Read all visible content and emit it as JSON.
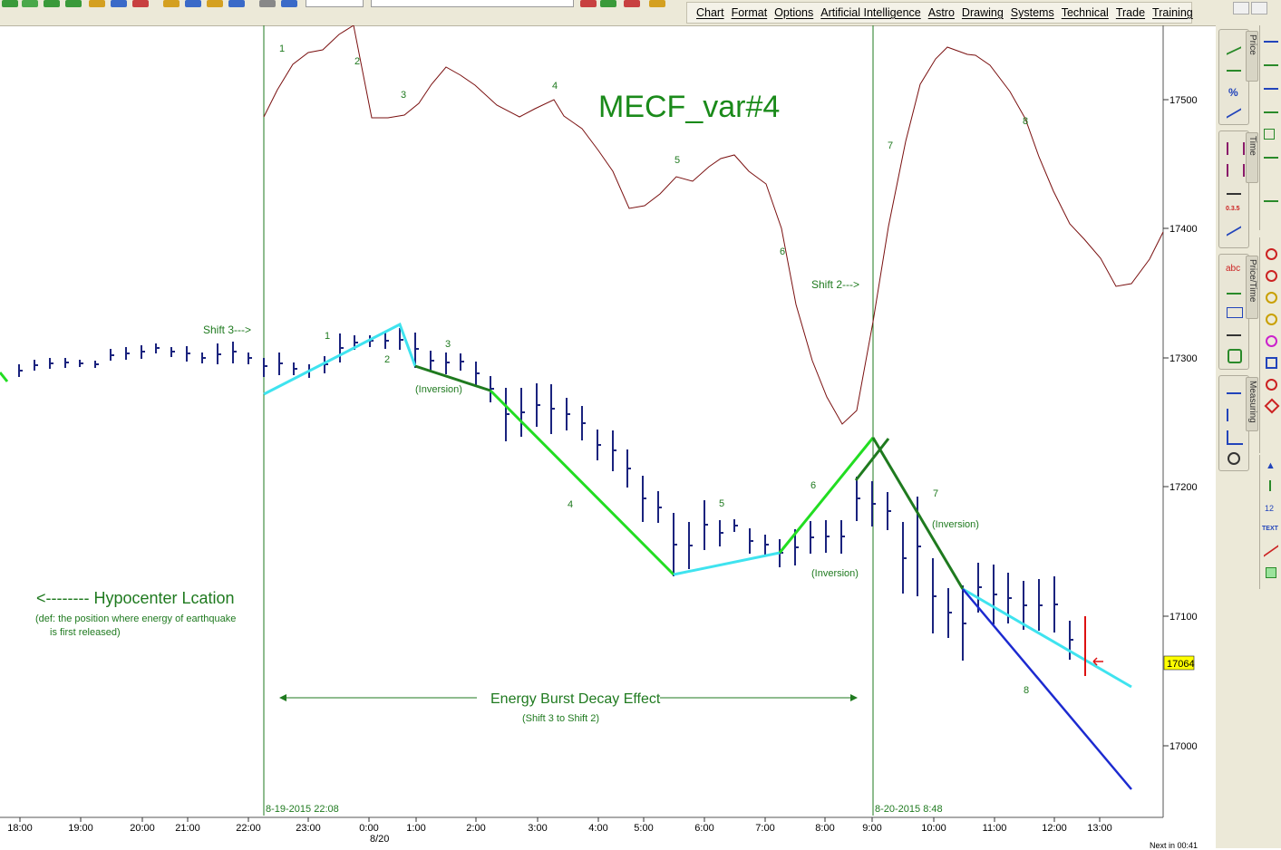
{
  "menu": {
    "items": [
      "Chart",
      "Format",
      "Options",
      "Artificial Intelligence",
      "Astro",
      "Drawing",
      "Systems",
      "Technical",
      "Trade",
      "Training"
    ]
  },
  "chart": {
    "title": "MECF_var#4",
    "price_ticks": [
      "17500",
      "17400",
      "17300",
      "17200",
      "17100",
      "17000"
    ],
    "last_price": "17064",
    "time_ticks": [
      "18:00",
      "19:00",
      "20:00",
      "21:00",
      "22:00",
      "23:00",
      "0:00",
      "1:00",
      "2:00",
      "3:00",
      "4:00",
      "5:00",
      "6:00",
      "7:00",
      "8:00",
      "9:00",
      "10:00",
      "11:00",
      "12:00",
      "13:00"
    ],
    "date_label": "8/20",
    "vline1_label": "8-19-2015 22:08",
    "vline2_label": "8-20-2015 8:48",
    "shift3": "Shift 3--->",
    "shift2": "Shift 2--->",
    "hypocenter_title": "<-------- Hypocenter Lcation",
    "hypocenter_def1": "(def: the position where energy of earthquake",
    "hypocenter_def2": "is first released)",
    "energy_title": "Energy Burst Decay Effect",
    "energy_sub": "(Shift 3 to Shift 2)",
    "inversion": "(Inversion)",
    "wave_top_labels": [
      "1",
      "2",
      "3",
      "4",
      "5",
      "6",
      "7",
      "8"
    ],
    "wave_bottom_labels": [
      "1",
      "2",
      "3",
      "4",
      "5",
      "6",
      "7",
      "8"
    ],
    "colors": {
      "bars": "#1a237e",
      "cyan": "#3fe3ef",
      "green": "#22dd22",
      "darkgreen": "#1f7a1f",
      "oscillator": "#7a1010",
      "blue": "#1c2ad0",
      "red": "#dd1111"
    }
  },
  "status": {
    "text": "Next in 00:41"
  },
  "toolbox": {
    "tabs": [
      "Price",
      "Time",
      "Price/Time",
      "Measuring"
    ]
  }
}
